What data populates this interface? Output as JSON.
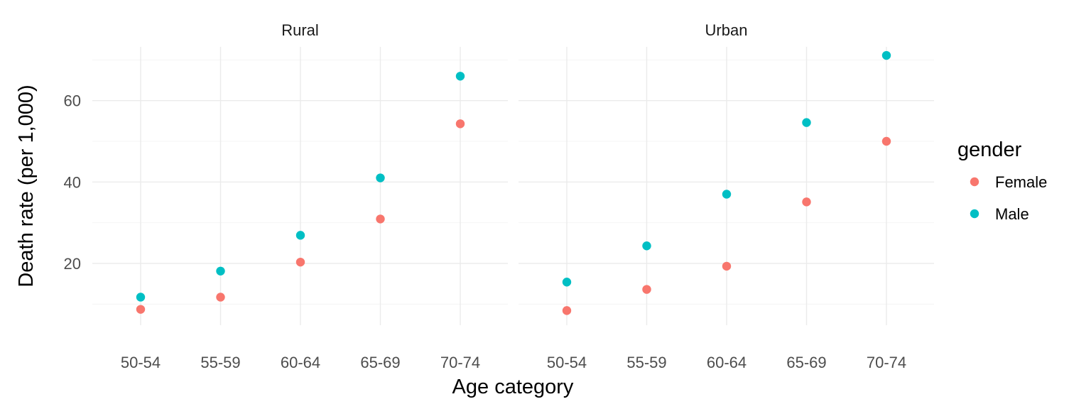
{
  "chart_data": {
    "type": "scatter",
    "facets": [
      "Rural",
      "Urban"
    ],
    "categories": [
      "50-54",
      "55-59",
      "60-64",
      "65-69",
      "70-74"
    ],
    "xlabel": "Age category",
    "ylabel": "Death rate (per 1,000)",
    "y_ticks": [
      20,
      40,
      60
    ],
    "ylim": [
      4.8,
      73.2
    ],
    "grid": true,
    "legend": {
      "title": "gender",
      "position": "right"
    },
    "series": [
      {
        "name": "Female",
        "color": "#F8766D",
        "values": {
          "Rural": [
            8.7,
            11.7,
            20.3,
            30.9,
            54.3
          ],
          "Urban": [
            8.4,
            13.6,
            19.3,
            35.1,
            50.0
          ]
        }
      },
      {
        "name": "Male",
        "color": "#00BFC4",
        "values": {
          "Rural": [
            11.7,
            18.1,
            26.9,
            41.0,
            66.0
          ],
          "Urban": [
            15.4,
            24.3,
            37.0,
            54.6,
            71.1
          ]
        }
      }
    ]
  }
}
